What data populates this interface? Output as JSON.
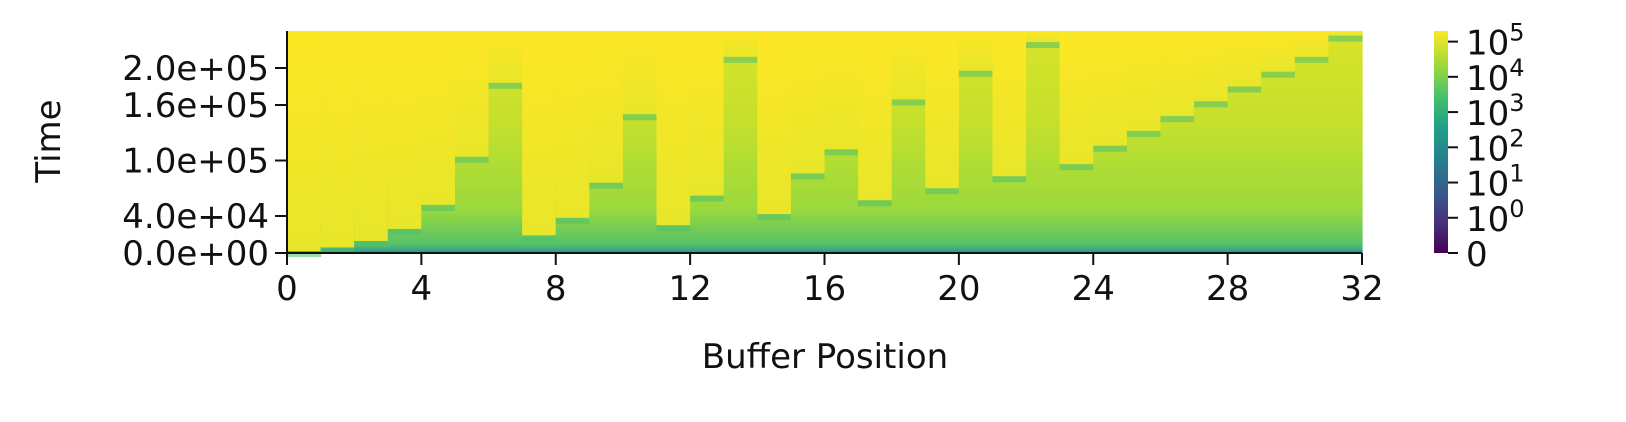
{
  "chart_data": {
    "type": "heatmap",
    "xlabel": "Buffer Position",
    "ylabel": "Time",
    "x_ticks": [
      0,
      4,
      8,
      12,
      16,
      20,
      24,
      28,
      32
    ],
    "x_tick_labels": [
      "0",
      "4",
      "8",
      "12",
      "16",
      "20",
      "24",
      "28",
      "32"
    ],
    "y_ticks": [
      0,
      40000,
      100000,
      160000,
      200000
    ],
    "y_tick_labels": [
      "0.0e+00",
      "4.0e+04",
      "1.0e+05",
      "1.6e+05",
      "2.0e+05"
    ],
    "xlim": [
      0,
      32
    ],
    "ylim": [
      0,
      240000
    ],
    "colorbar": {
      "colormap": "viridis",
      "scale": "symlog",
      "range": [
        0,
        200000
      ],
      "ticks": [
        0,
        1,
        10,
        100,
        1000,
        10000,
        100000
      ],
      "tick_labels": [
        {
          "base": "0",
          "exp": ""
        },
        {
          "base": "10",
          "exp": "0"
        },
        {
          "base": "10",
          "exp": "1"
        },
        {
          "base": "10",
          "exp": "2"
        },
        {
          "base": "10",
          "exp": "3"
        },
        {
          "base": "10",
          "exp": "4"
        },
        {
          "base": "10",
          "exp": "5"
        }
      ]
    },
    "columns": [
      {
        "position": 0,
        "boundary": 2000
      },
      {
        "position": 1,
        "boundary": 6000
      },
      {
        "position": 2,
        "boundary": 13000
      },
      {
        "position": 3,
        "boundary": 26000
      },
      {
        "position": 4,
        "boundary": 52000
      },
      {
        "position": 5,
        "boundary": 104000
      },
      {
        "position": 6,
        "boundary": 184000
      },
      {
        "position": 7,
        "boundary": 19000
      },
      {
        "position": 8,
        "boundary": 38000
      },
      {
        "position": 9,
        "boundary": 76000
      },
      {
        "position": 10,
        "boundary": 150000
      },
      {
        "position": 11,
        "boundary": 30000
      },
      {
        "position": 12,
        "boundary": 62000
      },
      {
        "position": 13,
        "boundary": 212000
      },
      {
        "position": 14,
        "boundary": 42000
      },
      {
        "position": 15,
        "boundary": 86000
      },
      {
        "position": 16,
        "boundary": 112000
      },
      {
        "position": 17,
        "boundary": 57000
      },
      {
        "position": 18,
        "boundary": 166000
      },
      {
        "position": 19,
        "boundary": 70000
      },
      {
        "position": 20,
        "boundary": 197000
      },
      {
        "position": 21,
        "boundary": 83000
      },
      {
        "position": 22,
        "boundary": 228000
      },
      {
        "position": 23,
        "boundary": 96000
      },
      {
        "position": 24,
        "boundary": 116000
      },
      {
        "position": 25,
        "boundary": 132000
      },
      {
        "position": 26,
        "boundary": 148000
      },
      {
        "position": 27,
        "boundary": 164000
      },
      {
        "position": 28,
        "boundary": 180000
      },
      {
        "position": 29,
        "boundary": 196000
      },
      {
        "position": 30,
        "boundary": 212000
      },
      {
        "position": 31,
        "boundary": 235000
      }
    ],
    "grid": false,
    "legend": "colorbar-right"
  }
}
